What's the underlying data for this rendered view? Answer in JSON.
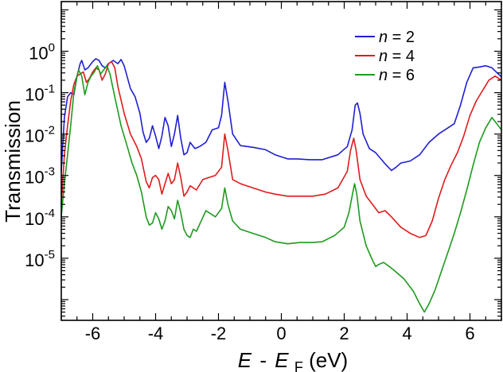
{
  "chart_data": {
    "type": "line",
    "ylabel": "Transmission",
    "xlabel": {
      "parts": [
        "E",
        "-",
        "E",
        "F",
        " (eV)"
      ]
    },
    "xlim": [
      -7,
      7
    ],
    "yscale": "log",
    "ylim_log10": [
      -6.5,
      1.2
    ],
    "xticks": [
      -6,
      -4,
      -2,
      0,
      2,
      4,
      6
    ],
    "xtick_labels": [
      "-6",
      "-4",
      "-2",
      "0",
      "2",
      "4",
      "6"
    ],
    "yticks": [
      0,
      -1,
      -2,
      -3,
      -4,
      -5
    ],
    "ytick_labels": [
      {
        "base": "10",
        "exp": "0"
      },
      {
        "base": "10",
        "exp": "-1"
      },
      {
        "base": "10",
        "exp": "-2"
      },
      {
        "base": "10",
        "exp": "-3"
      },
      {
        "base": "10",
        "exp": "-4"
      },
      {
        "base": "10",
        "exp": "-5"
      }
    ],
    "legend_position": "top-right",
    "series": [
      {
        "name": "n = 2",
        "name_parts": [
          "n",
          " = 2"
        ],
        "color": "#1f1fd6",
        "points": [
          [
            -7.0,
            -2.9
          ],
          [
            -6.9,
            -1.6
          ],
          [
            -6.8,
            -1.1
          ],
          [
            -6.7,
            -1.0
          ],
          [
            -6.6,
            -1.05
          ],
          [
            -6.5,
            -0.6
          ],
          [
            -6.4,
            -0.3
          ],
          [
            -6.35,
            -0.22
          ],
          [
            -6.25,
            -0.45
          ],
          [
            -6.15,
            -0.4
          ],
          [
            -6.0,
            -0.25
          ],
          [
            -5.9,
            -0.18
          ],
          [
            -5.8,
            -0.22
          ],
          [
            -5.7,
            -0.35
          ],
          [
            -5.6,
            -0.4
          ],
          [
            -5.5,
            -0.3
          ],
          [
            -5.35,
            -0.22
          ],
          [
            -5.2,
            -0.3
          ],
          [
            -5.1,
            -0.2
          ],
          [
            -5.0,
            -0.35
          ],
          [
            -4.8,
            -0.9
          ],
          [
            -4.65,
            -1.1
          ],
          [
            -4.5,
            -1.5
          ],
          [
            -4.4,
            -1.95
          ],
          [
            -4.3,
            -2.2
          ],
          [
            -4.2,
            -2.1
          ],
          [
            -4.1,
            -1.8
          ],
          [
            -4.0,
            -2.05
          ],
          [
            -3.9,
            -2.35
          ],
          [
            -3.8,
            -2.05
          ],
          [
            -3.7,
            -1.6
          ],
          [
            -3.6,
            -1.8
          ],
          [
            -3.5,
            -2.3
          ],
          [
            -3.4,
            -2.0
          ],
          [
            -3.3,
            -1.55
          ],
          [
            -3.2,
            -2.1
          ],
          [
            -3.1,
            -2.5
          ],
          [
            -3.0,
            -2.45
          ],
          [
            -2.9,
            -2.2
          ],
          [
            -2.75,
            -2.35
          ],
          [
            -2.6,
            -2.3
          ],
          [
            -2.4,
            -2.2
          ],
          [
            -2.2,
            -1.9
          ],
          [
            -2.0,
            -1.85
          ],
          [
            -1.9,
            -1.55
          ],
          [
            -1.8,
            -0.75
          ],
          [
            -1.7,
            -1.2
          ],
          [
            -1.55,
            -2.0
          ],
          [
            -1.3,
            -2.28
          ],
          [
            -0.9,
            -2.32
          ],
          [
            -0.5,
            -2.38
          ],
          [
            -0.2,
            -2.5
          ],
          [
            0.2,
            -2.6
          ],
          [
            0.5,
            -2.6
          ],
          [
            0.9,
            -2.62
          ],
          [
            1.3,
            -2.62
          ],
          [
            1.8,
            -2.5
          ],
          [
            2.1,
            -2.3
          ],
          [
            2.25,
            -1.9
          ],
          [
            2.35,
            -1.3
          ],
          [
            2.42,
            -1.25
          ],
          [
            2.5,
            -1.5
          ],
          [
            2.6,
            -2.0
          ],
          [
            2.8,
            -2.35
          ],
          [
            3.0,
            -2.45
          ],
          [
            3.3,
            -2.72
          ],
          [
            3.5,
            -2.88
          ],
          [
            3.65,
            -2.8
          ],
          [
            3.8,
            -2.7
          ],
          [
            4.1,
            -2.65
          ],
          [
            4.4,
            -2.5
          ],
          [
            4.7,
            -2.2
          ],
          [
            5.0,
            -2.0
          ],
          [
            5.3,
            -1.85
          ],
          [
            5.5,
            -1.75
          ],
          [
            5.7,
            -1.3
          ],
          [
            5.9,
            -0.75
          ],
          [
            6.1,
            -0.4
          ],
          [
            6.3,
            -0.38
          ],
          [
            6.5,
            -0.35
          ],
          [
            6.7,
            -0.4
          ],
          [
            6.9,
            -0.55
          ],
          [
            7.0,
            -0.62
          ]
        ]
      },
      {
        "name": "n = 4",
        "name_parts": [
          "n",
          " = 4"
        ],
        "color": "#e01b1b",
        "points": [
          [
            -7.0,
            -3.7
          ],
          [
            -6.9,
            -2.5
          ],
          [
            -6.8,
            -1.8
          ],
          [
            -6.7,
            -1.2
          ],
          [
            -6.6,
            -0.8
          ],
          [
            -6.5,
            -0.6
          ],
          [
            -6.4,
            -0.55
          ],
          [
            -6.3,
            -0.5
          ],
          [
            -6.2,
            -0.75
          ],
          [
            -6.1,
            -0.65
          ],
          [
            -6.0,
            -0.5
          ],
          [
            -5.9,
            -0.4
          ],
          [
            -5.8,
            -0.45
          ],
          [
            -5.7,
            -0.7
          ],
          [
            -5.6,
            -0.55
          ],
          [
            -5.5,
            -0.3
          ],
          [
            -5.4,
            -0.25
          ],
          [
            -5.3,
            -0.4
          ],
          [
            -5.2,
            -0.85
          ],
          [
            -5.0,
            -1.5
          ],
          [
            -4.8,
            -2.0
          ],
          [
            -4.6,
            -2.3
          ],
          [
            -4.45,
            -2.6
          ],
          [
            -4.3,
            -3.15
          ],
          [
            -4.2,
            -3.3
          ],
          [
            -4.1,
            -3.05
          ],
          [
            -4.0,
            -3.0
          ],
          [
            -3.9,
            -3.1
          ],
          [
            -3.8,
            -3.45
          ],
          [
            -3.7,
            -3.2
          ],
          [
            -3.6,
            -2.95
          ],
          [
            -3.5,
            -3.2
          ],
          [
            -3.4,
            -3.1
          ],
          [
            -3.3,
            -2.7
          ],
          [
            -3.2,
            -3.05
          ],
          [
            -3.1,
            -3.5
          ],
          [
            -3.0,
            -3.4
          ],
          [
            -2.9,
            -3.25
          ],
          [
            -2.7,
            -3.35
          ],
          [
            -2.5,
            -3.1
          ],
          [
            -2.3,
            -3.05
          ],
          [
            -2.1,
            -3.0
          ],
          [
            -1.9,
            -2.8
          ],
          [
            -1.8,
            -2.0
          ],
          [
            -1.7,
            -2.4
          ],
          [
            -1.55,
            -3.1
          ],
          [
            -1.3,
            -3.2
          ],
          [
            -0.9,
            -3.3
          ],
          [
            -0.5,
            -3.4
          ],
          [
            -0.2,
            -3.45
          ],
          [
            0.2,
            -3.5
          ],
          [
            0.6,
            -3.5
          ],
          [
            1.0,
            -3.5
          ],
          [
            1.4,
            -3.45
          ],
          [
            1.8,
            -3.3
          ],
          [
            2.1,
            -2.9
          ],
          [
            2.2,
            -2.4
          ],
          [
            2.3,
            -2.1
          ],
          [
            2.38,
            -2.4
          ],
          [
            2.5,
            -3.1
          ],
          [
            2.7,
            -3.5
          ],
          [
            2.9,
            -3.7
          ],
          [
            3.1,
            -3.9
          ],
          [
            3.3,
            -3.85
          ],
          [
            3.5,
            -4.0
          ],
          [
            3.8,
            -4.25
          ],
          [
            4.1,
            -4.4
          ],
          [
            4.4,
            -4.5
          ],
          [
            4.6,
            -4.45
          ],
          [
            4.8,
            -4.1
          ],
          [
            5.0,
            -3.55
          ],
          [
            5.2,
            -3.1
          ],
          [
            5.4,
            -2.75
          ],
          [
            5.6,
            -2.45
          ],
          [
            5.8,
            -2.05
          ],
          [
            6.0,
            -1.55
          ],
          [
            6.2,
            -1.2
          ],
          [
            6.4,
            -0.95
          ],
          [
            6.6,
            -0.7
          ],
          [
            6.8,
            -0.6
          ],
          [
            7.0,
            -0.7
          ]
        ]
      },
      {
        "name": "n = 6",
        "name_parts": [
          "n",
          " = 6"
        ],
        "color": "#1f9a1f",
        "points": [
          [
            -7.0,
            -4.0
          ],
          [
            -6.9,
            -3.2
          ],
          [
            -6.8,
            -2.5
          ],
          [
            -6.7,
            -1.8
          ],
          [
            -6.6,
            -1.0
          ],
          [
            -6.5,
            -0.6
          ],
          [
            -6.45,
            -0.45
          ],
          [
            -6.35,
            -0.6
          ],
          [
            -6.25,
            -1.05
          ],
          [
            -6.15,
            -0.75
          ],
          [
            -6.05,
            -0.6
          ],
          [
            -5.95,
            -0.5
          ],
          [
            -5.85,
            -0.35
          ],
          [
            -5.75,
            -0.55
          ],
          [
            -5.65,
            -0.45
          ],
          [
            -5.55,
            -0.35
          ],
          [
            -5.45,
            -0.55
          ],
          [
            -5.3,
            -1.1
          ],
          [
            -5.1,
            -1.8
          ],
          [
            -4.9,
            -2.3
          ],
          [
            -4.75,
            -2.7
          ],
          [
            -4.6,
            -3.0
          ],
          [
            -4.45,
            -3.4
          ],
          [
            -4.3,
            -4.0
          ],
          [
            -4.2,
            -4.2
          ],
          [
            -4.1,
            -4.15
          ],
          [
            -4.0,
            -3.9
          ],
          [
            -3.9,
            -4.05
          ],
          [
            -3.8,
            -4.3
          ],
          [
            -3.7,
            -4.1
          ],
          [
            -3.6,
            -3.75
          ],
          [
            -3.5,
            -3.85
          ],
          [
            -3.4,
            -4.05
          ],
          [
            -3.3,
            -3.6
          ],
          [
            -3.2,
            -3.9
          ],
          [
            -3.1,
            -4.3
          ],
          [
            -3.0,
            -4.45
          ],
          [
            -2.9,
            -4.5
          ],
          [
            -2.8,
            -4.3
          ],
          [
            -2.7,
            -4.35
          ],
          [
            -2.55,
            -4.1
          ],
          [
            -2.4,
            -3.85
          ],
          [
            -2.3,
            -3.9
          ],
          [
            -2.1,
            -4.0
          ],
          [
            -1.9,
            -3.8
          ],
          [
            -1.8,
            -3.3
          ],
          [
            -1.7,
            -3.7
          ],
          [
            -1.55,
            -4.1
          ],
          [
            -1.3,
            -4.3
          ],
          [
            -0.9,
            -4.4
          ],
          [
            -0.5,
            -4.5
          ],
          [
            -0.2,
            -4.6
          ],
          [
            0.2,
            -4.65
          ],
          [
            0.6,
            -4.62
          ],
          [
            1.0,
            -4.62
          ],
          [
            1.3,
            -4.6
          ],
          [
            1.7,
            -4.45
          ],
          [
            2.0,
            -4.25
          ],
          [
            2.15,
            -3.9
          ],
          [
            2.25,
            -3.5
          ],
          [
            2.33,
            -3.2
          ],
          [
            2.4,
            -3.45
          ],
          [
            2.5,
            -4.1
          ],
          [
            2.7,
            -4.7
          ],
          [
            2.9,
            -5.05
          ],
          [
            3.0,
            -5.2
          ],
          [
            3.1,
            -5.15
          ],
          [
            3.25,
            -5.1
          ],
          [
            3.4,
            -5.18
          ],
          [
            3.6,
            -5.3
          ],
          [
            3.9,
            -5.5
          ],
          [
            4.2,
            -5.8
          ],
          [
            4.4,
            -6.1
          ],
          [
            4.55,
            -6.3
          ],
          [
            4.7,
            -6.1
          ],
          [
            4.9,
            -5.75
          ],
          [
            5.1,
            -5.3
          ],
          [
            5.3,
            -4.85
          ],
          [
            5.5,
            -4.4
          ],
          [
            5.7,
            -3.9
          ],
          [
            5.9,
            -3.35
          ],
          [
            6.1,
            -2.75
          ],
          [
            6.3,
            -2.2
          ],
          [
            6.5,
            -1.85
          ],
          [
            6.7,
            -1.6
          ],
          [
            6.9,
            -1.8
          ],
          [
            7.0,
            -1.9
          ]
        ]
      }
    ]
  }
}
